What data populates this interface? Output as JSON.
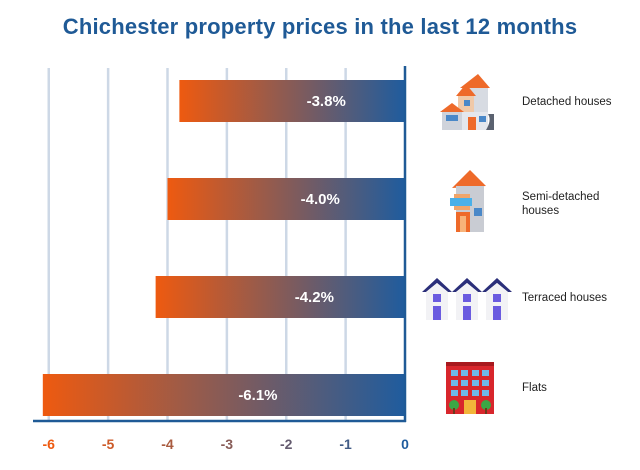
{
  "chart_data": {
    "type": "bar",
    "orientation": "horizontal",
    "title": "Chichester property prices in the last 12 months",
    "categories": [
      "Detached houses",
      "Semi-detached houses",
      "Terraced houses",
      "Flats"
    ],
    "values": [
      -3.8,
      -4.0,
      -4.2,
      -6.1
    ],
    "data_labels": [
      "-3.8%",
      "-4.0%",
      "-4.2%",
      "-6.1%"
    ],
    "xlim": [
      -6.4,
      0
    ],
    "xticks": [
      -6,
      -5,
      -4,
      -3,
      -2,
      -1,
      0
    ],
    "xtick_labels": [
      "-6",
      "-5",
      "-4",
      "-3",
      "-2",
      "-1",
      "0"
    ],
    "grid": "vertical",
    "xlabel": "",
    "ylabel": ""
  },
  "icons": [
    "detached-house-icon",
    "semi-detached-house-icon",
    "terraced-houses-icon",
    "flats-icon"
  ],
  "colors": {
    "title": "#1f5a96",
    "bar_start": "#ee5a10",
    "bar_end": "#1f5c9e",
    "axis": "#1f5a96",
    "grid": "#cdd8e6"
  }
}
